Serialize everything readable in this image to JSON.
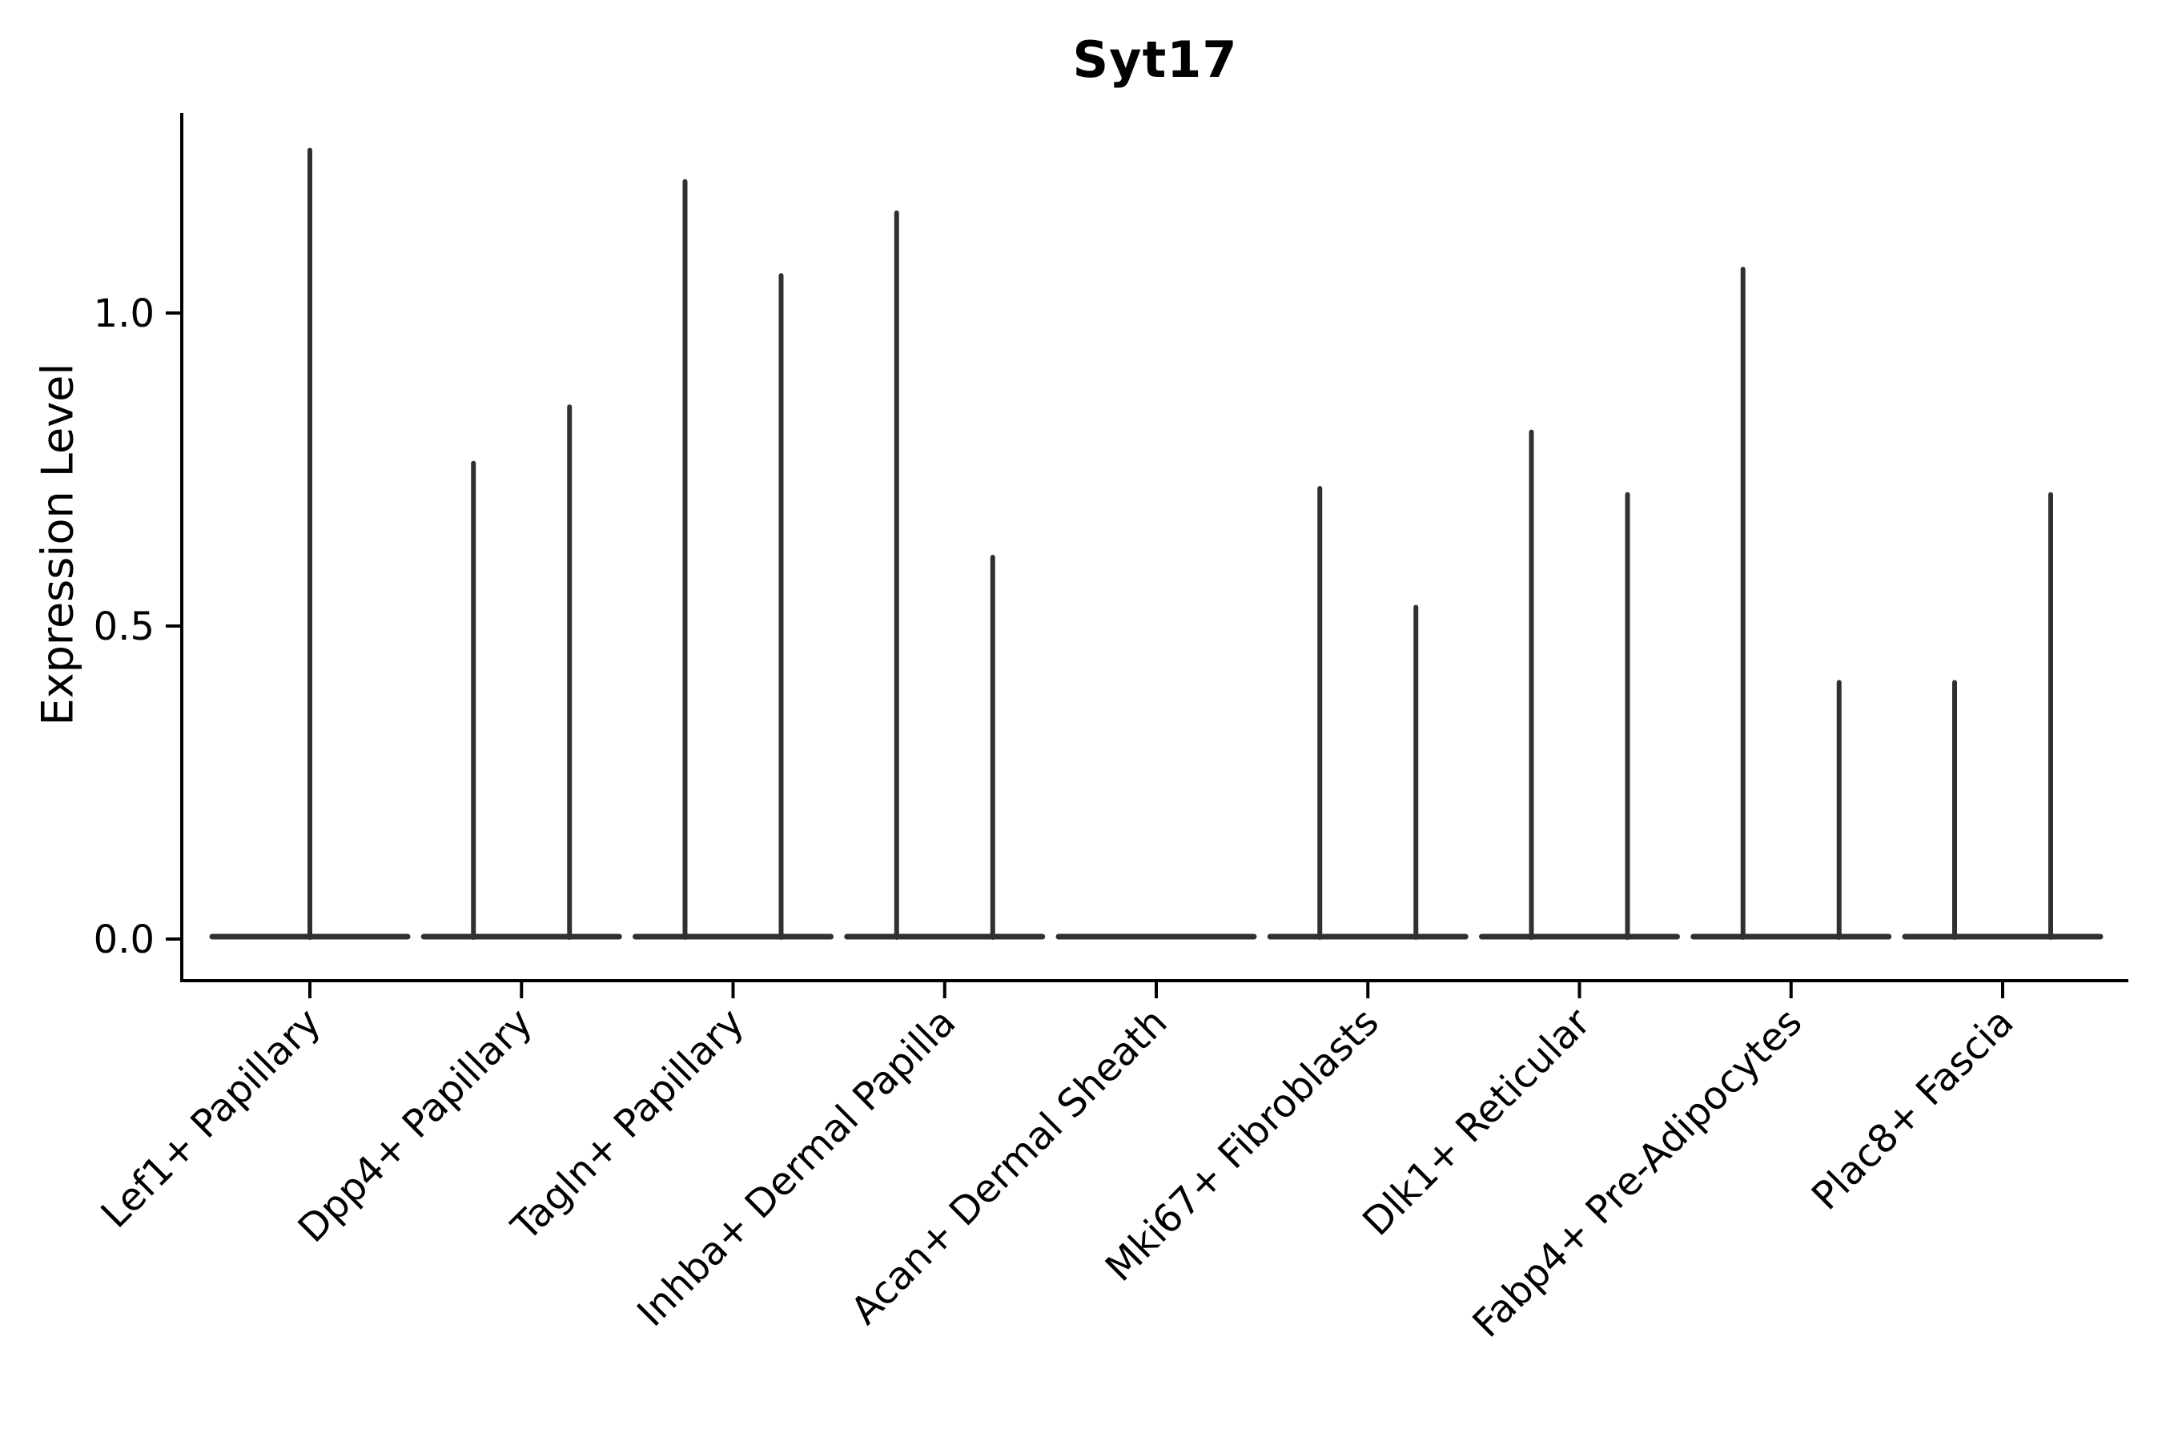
{
  "title": "Syt17",
  "y_axis_label": "Expression Level",
  "colors": {
    "background": "#ffffff",
    "axis": "#000000",
    "text": "#000000",
    "violin_line": "#303030"
  },
  "chart_data": {
    "type": "violin",
    "title": "Syt17",
    "xlabel": "",
    "ylabel": "Expression Level",
    "ylim": [
      -0.07,
      1.32
    ],
    "grid": false,
    "legend": "none",
    "description": "Spike-shaped violins: each category shows a flat density line at 0 with thin vertical spikes reaching the maximum expression values; Acan+ Dermal Sheath has no spikes; Lef1+ Papillary has a single centered spike, all other categories have two spikes.",
    "yticks": [
      {
        "label": "0.0",
        "value": 0.0
      },
      {
        "label": "0.5",
        "value": 0.5
      },
      {
        "label": "1.0",
        "value": 1.0
      }
    ],
    "categories": [
      "Lef1+ Papillary",
      "Dpp4+ Papillary",
      "Tagln+ Papillary",
      "Inhba+ Dermal Papilla",
      "Acan+ Dermal Sheath",
      "Mki67+ Fibroblasts",
      "Dlk1+ Reticular",
      "Fabp4+ Pre-Adipocytes",
      "Plac8+ Fascia"
    ],
    "violins": [
      {
        "category": "Lef1+ Papillary",
        "baseline_value": 0.0,
        "spike_values": [
          1.26
        ]
      },
      {
        "category": "Dpp4+ Papillary",
        "baseline_value": 0.0,
        "spike_values": [
          0.76,
          0.85
        ]
      },
      {
        "category": "Tagln+ Papillary",
        "baseline_value": 0.0,
        "spike_values": [
          1.21,
          1.06
        ]
      },
      {
        "category": "Inhba+ Dermal Papilla",
        "baseline_value": 0.0,
        "spike_values": [
          1.16,
          0.61
        ]
      },
      {
        "category": "Acan+ Dermal Sheath",
        "baseline_value": 0.0,
        "spike_values": []
      },
      {
        "category": "Mki67+ Fibroblasts",
        "baseline_value": 0.0,
        "spike_values": [
          0.72,
          0.53
        ]
      },
      {
        "category": "Dlk1+ Reticular",
        "baseline_value": 0.0,
        "spike_values": [
          0.81,
          0.71
        ]
      },
      {
        "category": "Fabp4+ Pre-Adipocytes",
        "baseline_value": 0.0,
        "spike_values": [
          1.07,
          0.41
        ]
      },
      {
        "category": "Plac8+ Fascia",
        "baseline_value": 0.0,
        "spike_values": [
          0.41,
          0.71
        ]
      }
    ]
  }
}
